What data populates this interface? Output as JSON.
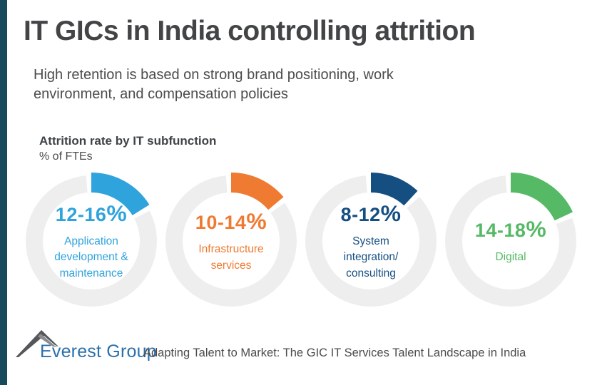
{
  "page": {
    "title": "IT GICs in India controlling attrition",
    "subtitle": "High retention is based on strong brand positioning, work\nenvironment, and compensation policies",
    "accent_bar_color": "#174a5a"
  },
  "chart": {
    "heading": "Attrition rate by IT subfunction",
    "unit_label": "% of FTEs"
  },
  "chart_data": {
    "type": "pie",
    "variant": "donut-gauge-row",
    "title": "Attrition rate by IT subfunction",
    "unit": "% of FTEs",
    "ring_color": "#eeeeef",
    "segments": [
      {
        "label": "Application development & maintenance",
        "label_display": "Application\ndevelopment &\nmaintenance",
        "value_range": "12-16",
        "suffix": "%",
        "low": 12,
        "high": 16,
        "arc_degrees": 58,
        "color": "#2fa3dc"
      },
      {
        "label": "Infrastructure services",
        "label_display": "Infrastructure\nservices",
        "value_range": "10-14",
        "suffix": "%",
        "low": 10,
        "high": 14,
        "arc_degrees": 50,
        "color": "#ef7a31"
      },
      {
        "label": "System integration/ consulting",
        "label_display": "System\nintegration/\nconsulting",
        "value_range": "8-12",
        "suffix": "%",
        "low": 8,
        "high": 12,
        "arc_degrees": 43,
        "color": "#154f82"
      },
      {
        "label": "Digital",
        "label_display": "Digital",
        "value_range": "14-18",
        "suffix": "%",
        "low": 14,
        "high": 18,
        "arc_degrees": 65,
        "color": "#55b966"
      }
    ]
  },
  "footer": {
    "brand": "Everest Group",
    "source": "Adapting Talent to Market: The GIC IT Services Talent Landscape in India",
    "brand_color": "#2b70ab"
  }
}
